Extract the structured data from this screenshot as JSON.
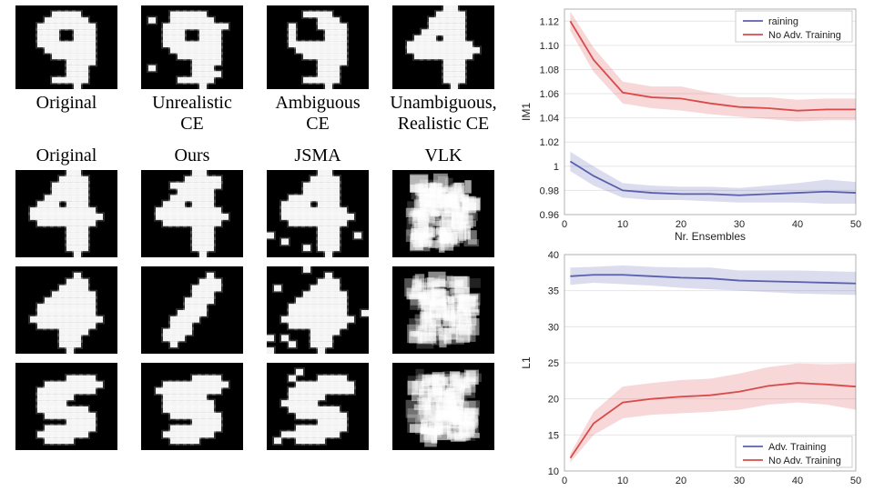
{
  "left": {
    "top": [
      {
        "caption": "Original",
        "digit": "9",
        "variant": "clean"
      },
      {
        "caption": "Unrealistic\nCE",
        "digit": "9",
        "variant": "dots"
      },
      {
        "caption": "Ambiguous\nCE",
        "digit": "9",
        "variant": "thin4"
      },
      {
        "caption": "Unambiguous,\nRealistic CE",
        "digit": "4",
        "variant": "clean4"
      }
    ],
    "methods": [
      "Original",
      "Ours",
      "JSMA",
      "VLK"
    ],
    "rows": [
      [
        {
          "d": "4",
          "v": "clean4"
        },
        {
          "d": "4",
          "v": "ours4a"
        },
        {
          "d": "4",
          "v": "jsma4"
        },
        {
          "d": "X",
          "v": "vlk1"
        }
      ],
      [
        {
          "d": "4",
          "v": "slant4"
        },
        {
          "d": "1",
          "v": "slash"
        },
        {
          "d": "4",
          "v": "jsma4b"
        },
        {
          "d": "X",
          "v": "vlk2"
        }
      ],
      [
        {
          "d": "5",
          "v": "wave5"
        },
        {
          "d": "5",
          "v": "ours5"
        },
        {
          "d": "5",
          "v": "jsma5"
        },
        {
          "d": "X",
          "v": "vlk3"
        }
      ]
    ]
  },
  "charts": {
    "colors": {
      "adv_line": "#5a5fb0",
      "adv_fill": "rgba(90,95,176,0.22)",
      "noadv_line": "#d94a4a",
      "noadv_fill": "rgba(217,74,74,0.22)",
      "grid": "#e6e6e6",
      "frame": "#b0b0b0",
      "bg": "#ffffff"
    },
    "top": {
      "ylabel": "IM1",
      "xlabel": "Nr. Ensembles",
      "xlim": [
        0,
        50
      ],
      "xticks": [
        0,
        10,
        20,
        30,
        40,
        50
      ],
      "ylim": [
        0.96,
        1.13
      ],
      "yticks": [
        0.96,
        0.98,
        1.0,
        1.02,
        1.04,
        1.06,
        1.08,
        1.1,
        1.12
      ],
      "legend_pos": "top-right",
      "legend": [
        "Adv. Training",
        "No Adv. Training"
      ],
      "series": {
        "adv": {
          "x": [
            1,
            5,
            10,
            15,
            20,
            25,
            30,
            35,
            40,
            45,
            50
          ],
          "y": [
            1.004,
            0.992,
            0.98,
            0.978,
            0.977,
            0.977,
            0.976,
            0.977,
            0.978,
            0.979,
            0.978
          ],
          "lo": [
            0.996,
            0.984,
            0.974,
            0.972,
            0.972,
            0.971,
            0.97,
            0.97,
            0.97,
            0.969,
            0.969
          ],
          "hi": [
            1.012,
            1.0,
            0.986,
            0.984,
            0.983,
            0.983,
            0.982,
            0.984,
            0.986,
            0.989,
            0.987
          ]
        },
        "noadv": {
          "x": [
            1,
            5,
            10,
            15,
            20,
            25,
            30,
            35,
            40,
            45,
            50
          ],
          "y": [
            1.12,
            1.088,
            1.061,
            1.057,
            1.056,
            1.052,
            1.049,
            1.048,
            1.046,
            1.047,
            1.047
          ],
          "lo": [
            1.112,
            1.078,
            1.052,
            1.048,
            1.046,
            1.043,
            1.041,
            1.039,
            1.037,
            1.038,
            1.038
          ],
          "hi": [
            1.128,
            1.098,
            1.07,
            1.066,
            1.066,
            1.061,
            1.057,
            1.057,
            1.055,
            1.056,
            1.056
          ]
        }
      }
    },
    "bottom": {
      "ylabel": "L1",
      "xlabel": "",
      "xlim": [
        0,
        50
      ],
      "xticks": [
        0,
        10,
        20,
        30,
        40,
        50
      ],
      "ylim": [
        10,
        40
      ],
      "yticks": [
        10,
        15,
        20,
        25,
        30,
        35,
        40
      ],
      "legend_pos": "bottom-right",
      "legend": [
        "Adv. Training",
        "No Adv. Training"
      ],
      "series": {
        "adv": {
          "x": [
            1,
            5,
            10,
            15,
            20,
            25,
            30,
            35,
            40,
            45,
            50
          ],
          "y": [
            37.0,
            37.2,
            37.2,
            37.0,
            36.8,
            36.7,
            36.4,
            36.3,
            36.2,
            36.1,
            36.0
          ],
          "lo": [
            35.8,
            36.1,
            35.9,
            35.7,
            35.4,
            35.2,
            35.0,
            34.8,
            34.6,
            34.5,
            34.4
          ],
          "hi": [
            38.2,
            38.3,
            38.5,
            38.3,
            38.2,
            38.2,
            37.8,
            37.8,
            37.8,
            37.7,
            37.6
          ]
        },
        "noadv": {
          "x": [
            1,
            5,
            10,
            15,
            20,
            25,
            30,
            35,
            40,
            45,
            50
          ],
          "y": [
            11.8,
            16.6,
            19.5,
            20.0,
            20.3,
            20.5,
            21.0,
            21.8,
            22.2,
            22.0,
            21.7
          ],
          "lo": [
            11.2,
            15.0,
            17.3,
            17.8,
            18.0,
            18.2,
            18.5,
            19.2,
            19.5,
            19.2,
            18.5
          ],
          "hi": [
            12.4,
            18.2,
            21.7,
            22.2,
            22.6,
            22.8,
            23.5,
            24.4,
            24.9,
            24.8,
            24.9
          ]
        }
      }
    }
  }
}
